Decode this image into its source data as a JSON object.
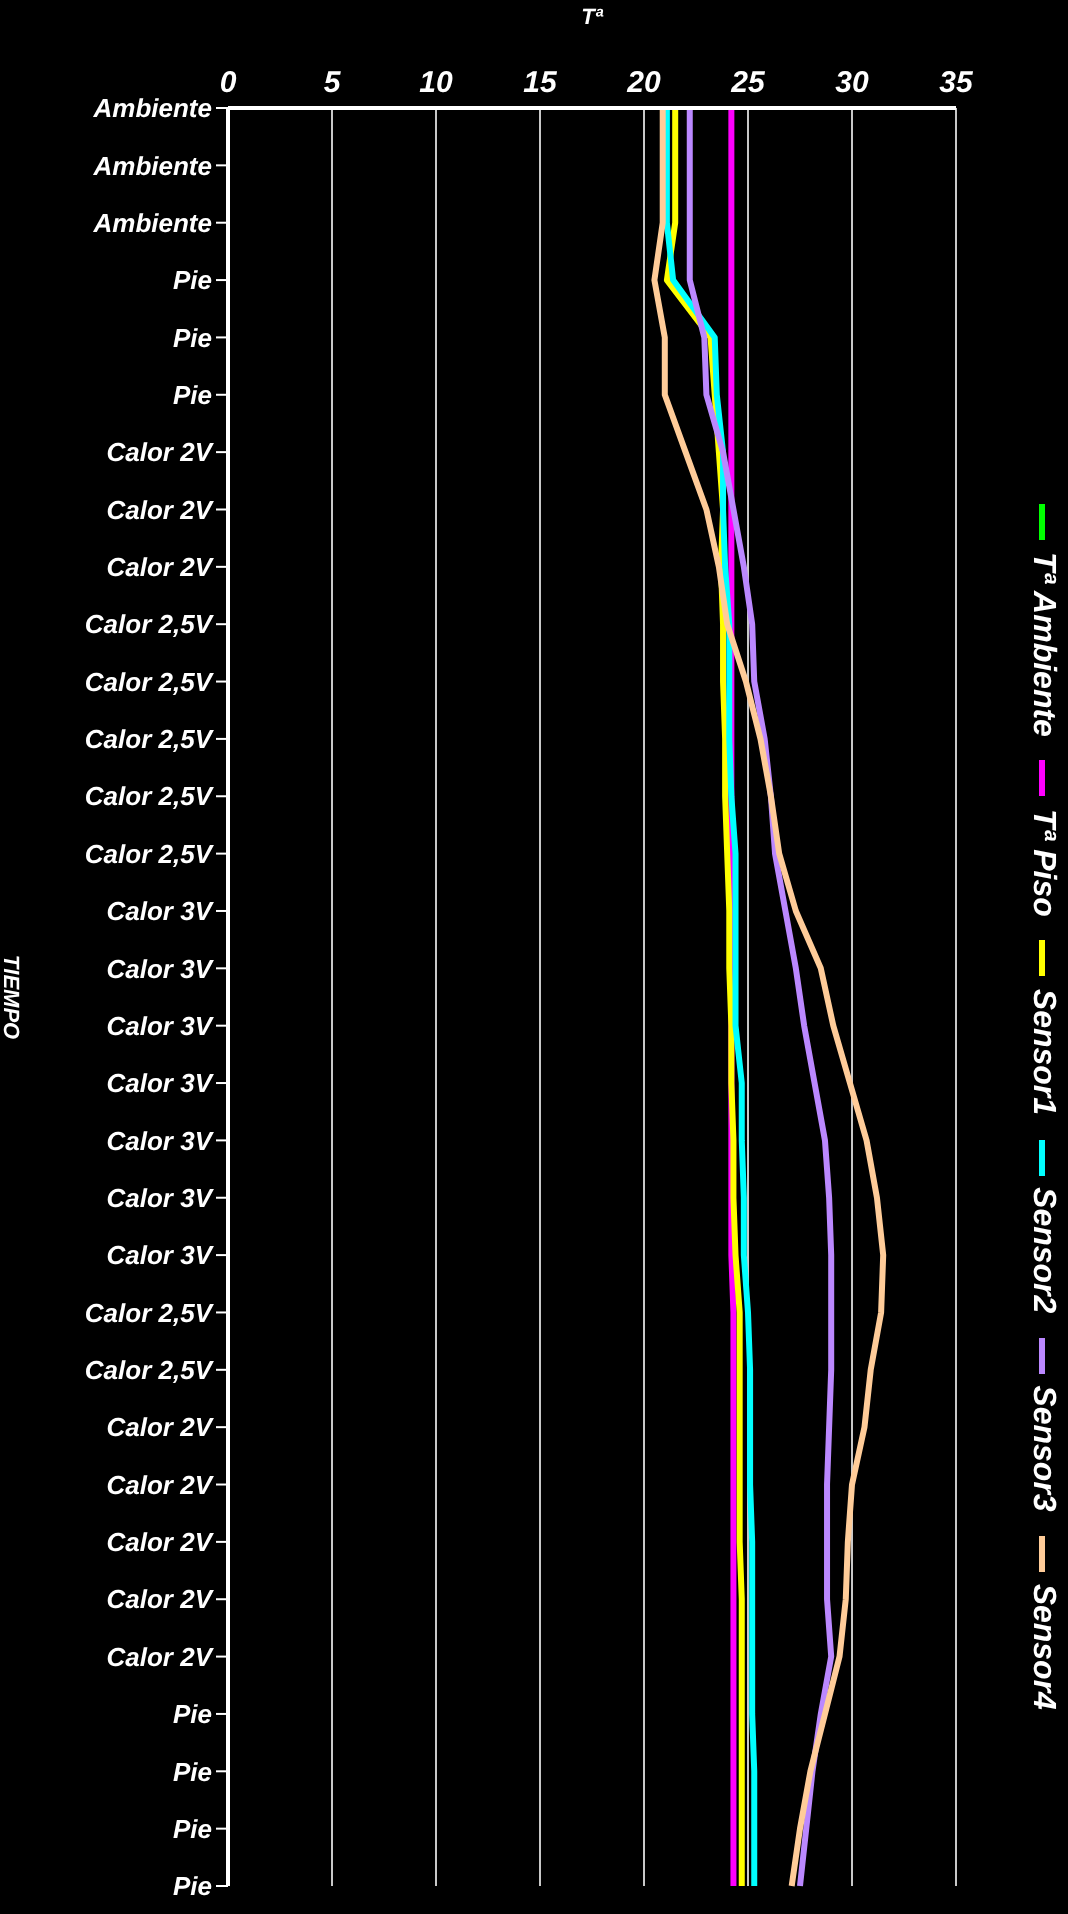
{
  "chart_data": {
    "type": "line",
    "orientation": "horizontal",
    "xlabel": "Tª",
    "ylabel": "TIEMPO",
    "categories": [
      "Ambiente",
      "Ambiente",
      "Ambiente",
      "Pie",
      "Pie",
      "Pie",
      "Calor 2V",
      "Calor 2V",
      "Calor 2V",
      "Calor 2,5V",
      "Calor 2,5V",
      "Calor 2,5V",
      "Calor 2,5V",
      "Calor 2,5V",
      "Calor 3V",
      "Calor 3V",
      "Calor 3V",
      "Calor 3V",
      "Calor 3V",
      "Calor 3V",
      "Calor 3V",
      "Calor 2,5V",
      "Calor 2,5V",
      "Calor 2V",
      "Calor 2V",
      "Calor 2V",
      "Calor 2V",
      "Calor 2V",
      "Pie",
      "Pie",
      "Pie",
      "Pie"
    ],
    "series": [
      {
        "name": "Tª Ambiente",
        "color": "#00ff00",
        "values": [
          null,
          null,
          null,
          null,
          null,
          null,
          null,
          null,
          null,
          null,
          null,
          null,
          null,
          null,
          null,
          null,
          null,
          null,
          null,
          null,
          null,
          null,
          null,
          null,
          null,
          null,
          null,
          null,
          null,
          null,
          null,
          null
        ]
      },
      {
        "name": "Tª Piso",
        "color": "#ff00ff",
        "values": [
          24.2,
          24.2,
          24.2,
          24.2,
          24.2,
          24.2,
          24.2,
          24.2,
          24.2,
          24.2,
          24.2,
          24.2,
          24.2,
          24.2,
          24.2,
          24.2,
          24.2,
          24.2,
          24.2,
          24.2,
          24.2,
          24.3,
          24.3,
          24.3,
          24.3,
          24.3,
          24.3,
          24.3,
          24.3,
          24.3,
          24.3,
          24.3
        ]
      },
      {
        "name": "Sensor1",
        "color": "#ffff00",
        "values": [
          21.5,
          21.5,
          21.5,
          21.1,
          23.2,
          23.4,
          23.6,
          23.8,
          23.7,
          23.8,
          23.8,
          23.9,
          23.9,
          24.0,
          24.1,
          24.1,
          24.2,
          24.2,
          24.3,
          24.3,
          24.4,
          24.6,
          24.6,
          24.6,
          24.6,
          24.6,
          24.7,
          24.7,
          24.7,
          24.7,
          24.7,
          24.7
        ]
      },
      {
        "name": "Sensor2",
        "color": "#00ffff",
        "values": [
          21.1,
          21.1,
          21.1,
          21.4,
          23.4,
          23.5,
          23.8,
          23.8,
          23.9,
          24.1,
          24.1,
          24.1,
          24.2,
          24.4,
          24.4,
          24.4,
          24.4,
          24.7,
          24.7,
          24.8,
          24.8,
          25.0,
          25.1,
          25.1,
          25.1,
          25.2,
          25.2,
          25.2,
          25.2,
          25.3,
          25.3,
          25.3
        ]
      },
      {
        "name": "Sensor3",
        "color": "#bb88ff",
        "values": [
          22.2,
          22.2,
          22.2,
          22.2,
          22.9,
          23.0,
          23.8,
          24.3,
          24.8,
          25.2,
          25.3,
          25.8,
          26.1,
          26.3,
          26.8,
          27.3,
          27.7,
          28.2,
          28.7,
          28.9,
          29.0,
          29.0,
          29.0,
          28.9,
          28.8,
          28.8,
          28.8,
          29.0,
          28.5,
          28.1,
          27.8,
          27.5
        ]
      },
      {
        "name": "Sensor4",
        "color": "#ffcc99",
        "values": [
          20.9,
          20.9,
          20.9,
          20.5,
          21.0,
          21.0,
          22.0,
          23.0,
          23.6,
          24.0,
          24.9,
          25.6,
          26.1,
          26.5,
          27.3,
          28.5,
          29.1,
          29.9,
          30.7,
          31.2,
          31.5,
          31.4,
          30.9,
          30.6,
          30.0,
          29.8,
          29.7,
          29.4,
          28.7,
          28.0,
          27.5,
          27.1
        ]
      }
    ],
    "xlim": [
      0,
      35
    ],
    "xticks": [
      0,
      5,
      10,
      15,
      20,
      25,
      30,
      35
    ],
    "grid": "x",
    "legend": "right"
  }
}
